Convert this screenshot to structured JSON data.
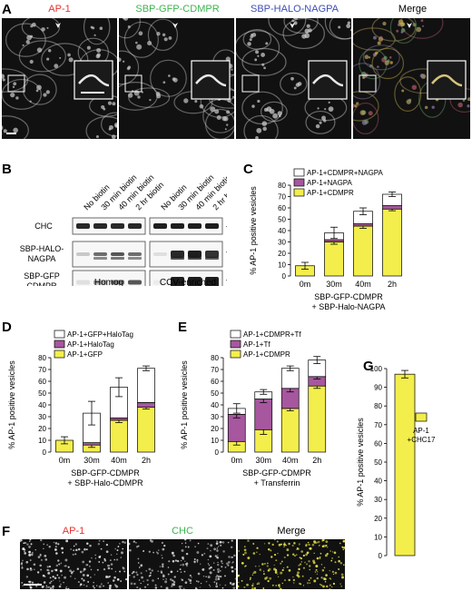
{
  "panelA": {
    "label": "A",
    "titles": [
      {
        "text": "AP-1",
        "color": "#e8322c"
      },
      {
        "text": "SBP-GFP-CDMPR",
        "color": "#3fb34f"
      },
      {
        "text": "SBP-HALO-NAGPA",
        "color": "#3d4fb5"
      },
      {
        "text": "Merge",
        "color": "#000000"
      }
    ]
  },
  "panelB": {
    "label": "B",
    "lanes": [
      "No biotin",
      "30 min biotin",
      "40 min biotin",
      "2 hr biotin",
      "No biotin",
      "30 min biotin",
      "40 min biotin",
      "2 hr biotin"
    ],
    "rows": [
      "CHC",
      "SBP-HALO-NAGPA",
      "SBP-GFP CDMPR"
    ],
    "markers": [
      "250",
      "100",
      "70"
    ],
    "groups": [
      "Homog",
      "CCV-enriched"
    ]
  },
  "panelF": {
    "label": "F",
    "titles": [
      {
        "text": "AP-1",
        "color": "#e8322c"
      },
      {
        "text": "CHC",
        "color": "#3fb34f"
      },
      {
        "text": "Merge",
        "color": "#000000"
      }
    ]
  },
  "colors": {
    "white": "#ffffff",
    "magenta": "#a6579e",
    "yellow": "#f3ee4b"
  },
  "chart_data": [
    {
      "panel": "C",
      "type": "bar",
      "stacked": true,
      "categories": [
        "0m",
        "30m",
        "40m",
        "2h"
      ],
      "ylabel": "% AP-1 positive vesicles",
      "xlabel_lines": [
        "SBP-GFP-CDMPR",
        "+ SBP-Halo-NAGPA"
      ],
      "ylim": [
        0,
        80
      ],
      "yticks": [
        0,
        10,
        20,
        30,
        40,
        50,
        60,
        70,
        80
      ],
      "legend": [
        "AP-1+CDMPR+NAGPA",
        "AP-1+NAGPA",
        "AP-1+CDMPR"
      ],
      "series": [
        {
          "name": "AP-1+CDMPR",
          "color": "#f3ee4b",
          "values": [
            9,
            30,
            44,
            59
          ],
          "err": [
            3,
            2,
            2,
            1.5
          ]
        },
        {
          "name": "AP-1+NAGPA",
          "color": "#a6579e",
          "values": [
            0,
            2,
            2,
            3
          ],
          "err": [
            0,
            0,
            0,
            0
          ]
        },
        {
          "name": "AP-1+CDMPR+NAGPA",
          "color": "#ffffff",
          "values": [
            0,
            6,
            11,
            10
          ],
          "err": [
            0,
            5,
            3,
            2
          ]
        }
      ]
    },
    {
      "panel": "D",
      "type": "bar",
      "stacked": true,
      "categories": [
        "0m",
        "30m",
        "40m",
        "2h"
      ],
      "ylabel": "% AP-1 positive vesicles",
      "xlabel_lines": [
        "SBP-GFP-CDMPR",
        "+ SBP-Halo-CDMPR"
      ],
      "ylim": [
        0,
        80
      ],
      "yticks": [
        0,
        10,
        20,
        30,
        40,
        50,
        60,
        70,
        80
      ],
      "legend": [
        "AP-1+GFP+HaloTag",
        "AP-1+HaloTag",
        "AP-1+GFP"
      ],
      "series": [
        {
          "name": "AP-1+GFP",
          "color": "#f3ee4b",
          "values": [
            10,
            6,
            27,
            38
          ],
          "err": [
            3,
            2,
            2,
            1.5
          ]
        },
        {
          "name": "AP-1+HaloTag",
          "color": "#a6579e",
          "values": [
            0,
            2,
            2,
            4
          ],
          "err": [
            0,
            0,
            0,
            0
          ]
        },
        {
          "name": "AP-1+GFP+HaloTag",
          "color": "#ffffff",
          "values": [
            0,
            25,
            26,
            29
          ],
          "err": [
            0,
            10,
            8,
            2
          ]
        }
      ]
    },
    {
      "panel": "E",
      "type": "bar",
      "stacked": true,
      "categories": [
        "0m",
        "30m",
        "40m",
        "2h"
      ],
      "ylabel": "% AP-1 positive vesicles",
      "xlabel_lines": [
        "SBP-GFP-CDMPR",
        "+ Transferrin"
      ],
      "ylim": [
        0,
        80
      ],
      "yticks": [
        0,
        10,
        20,
        30,
        40,
        50,
        60,
        70,
        80
      ],
      "legend": [
        "AP-1+CDMPR+Tf",
        "AP-1+Tf",
        "AP-1+CDMPR"
      ],
      "series": [
        {
          "name": "AP-1+CDMPR",
          "color": "#f3ee4b",
          "values": [
            9,
            19,
            37,
            56
          ],
          "err": [
            3,
            4,
            2,
            2
          ]
        },
        {
          "name": "AP-1+Tf",
          "color": "#a6579e",
          "values": [
            23,
            26,
            17,
            8
          ],
          "err": [
            3,
            3,
            3,
            2
          ]
        },
        {
          "name": "AP-1+CDMPR+Tf",
          "color": "#ffffff",
          "values": [
            5,
            6,
            17,
            14
          ],
          "err": [
            4,
            2,
            2,
            3
          ]
        }
      ]
    },
    {
      "panel": "G",
      "type": "bar",
      "categories": [
        ""
      ],
      "ylabel": "% AP-1 positive vesicles",
      "ylim": [
        0,
        100
      ],
      "yticks": [
        0,
        10,
        20,
        30,
        40,
        50,
        60,
        70,
        80,
        90,
        100
      ],
      "legend": [
        "AP-1 +CHC17"
      ],
      "series": [
        {
          "name": "AP-1 +CHC17",
          "color": "#f3ee4b",
          "values": [
            97
          ],
          "err": [
            2
          ]
        }
      ]
    }
  ]
}
